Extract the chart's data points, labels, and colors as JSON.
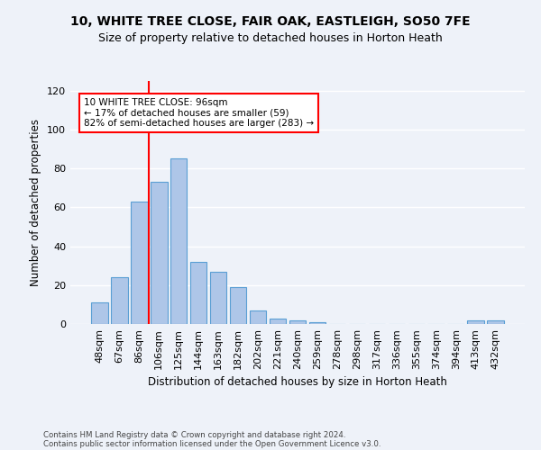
{
  "title_line1": "10, WHITE TREE CLOSE, FAIR OAK, EASTLEIGH, SO50 7FE",
  "title_line2": "Size of property relative to detached houses in Horton Heath",
  "xlabel": "Distribution of detached houses by size in Horton Heath",
  "ylabel": "Number of detached properties",
  "bar_color": "#aec6e8",
  "bar_edge_color": "#5a9fd4",
  "categories": [
    "48sqm",
    "67sqm",
    "86sqm",
    "106sqm",
    "125sqm",
    "144sqm",
    "163sqm",
    "182sqm",
    "202sqm",
    "221sqm",
    "240sqm",
    "259sqm",
    "278sqm",
    "298sqm",
    "317sqm",
    "336sqm",
    "355sqm",
    "374sqm",
    "394sqm",
    "413sqm",
    "432sqm"
  ],
  "values": [
    11,
    24,
    63,
    73,
    85,
    32,
    27,
    19,
    7,
    3,
    2,
    1,
    0,
    0,
    0,
    0,
    0,
    0,
    0,
    2,
    2
  ],
  "ylim": [
    0,
    125
  ],
  "yticks": [
    0,
    20,
    40,
    60,
    80,
    100,
    120
  ],
  "property_label": "10 WHITE TREE CLOSE: 96sqm",
  "annotation_line1": "← 17% of detached houses are smaller (59)",
  "annotation_line2": "82% of semi-detached houses are larger (283) →",
  "vline_x_index": 2.5,
  "footer_line1": "Contains HM Land Registry data © Crown copyright and database right 2024.",
  "footer_line2": "Contains public sector information licensed under the Open Government Licence v3.0.",
  "background_color": "#eef2f9",
  "grid_color": "#ffffff"
}
